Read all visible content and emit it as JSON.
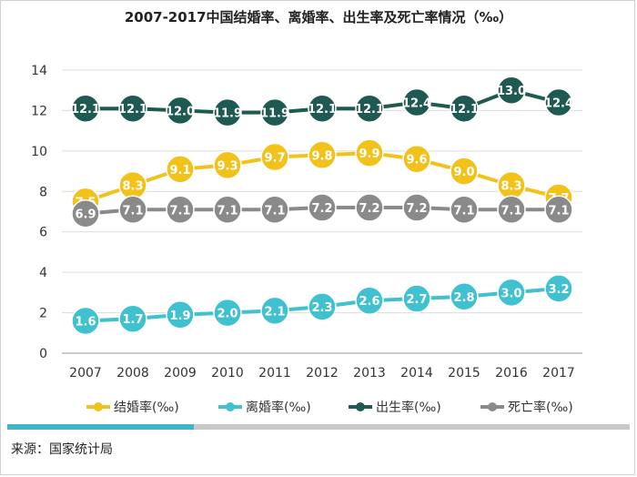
{
  "title": "2007-2017中国结婚率、离婚率、出生率及死亡率情况（‰）",
  "source": "来源：国家统计局",
  "chart_data": {
    "type": "line",
    "title": "2007-2017中国结婚率、离婚率、出生率及死亡率情况（‰）",
    "x": [
      "2007",
      "2008",
      "2009",
      "2010",
      "2011",
      "2012",
      "2013",
      "2014",
      "2015",
      "2016",
      "2017"
    ],
    "ylim": [
      0,
      14
    ],
    "yticks": [
      0,
      2,
      4,
      6,
      8,
      10,
      12,
      14
    ],
    "grid": true,
    "legend_position": "bottom",
    "series": [
      {
        "name": "结婚率(‰)",
        "color": "#f2c21b",
        "values": [
          7.5,
          8.3,
          9.1,
          9.3,
          9.7,
          9.8,
          9.9,
          9.6,
          9.0,
          8.3,
          7.7
        ]
      },
      {
        "name": "离婚率(‰)",
        "color": "#3fc1cf",
        "values": [
          1.6,
          1.7,
          1.9,
          2.0,
          2.1,
          2.3,
          2.6,
          2.7,
          2.8,
          3.0,
          3.2
        ]
      },
      {
        "name": "出生率(‰)",
        "color": "#1f5a52",
        "values": [
          12.1,
          12.1,
          12.0,
          11.9,
          11.9,
          12.1,
          12.1,
          12.4,
          12.1,
          13.0,
          12.4
        ]
      },
      {
        "name": "死亡率(‰)",
        "color": "#8a8a8a",
        "values": [
          6.9,
          7.1,
          7.1,
          7.1,
          7.1,
          7.2,
          7.2,
          7.2,
          7.1,
          7.1,
          7.1
        ]
      }
    ]
  }
}
